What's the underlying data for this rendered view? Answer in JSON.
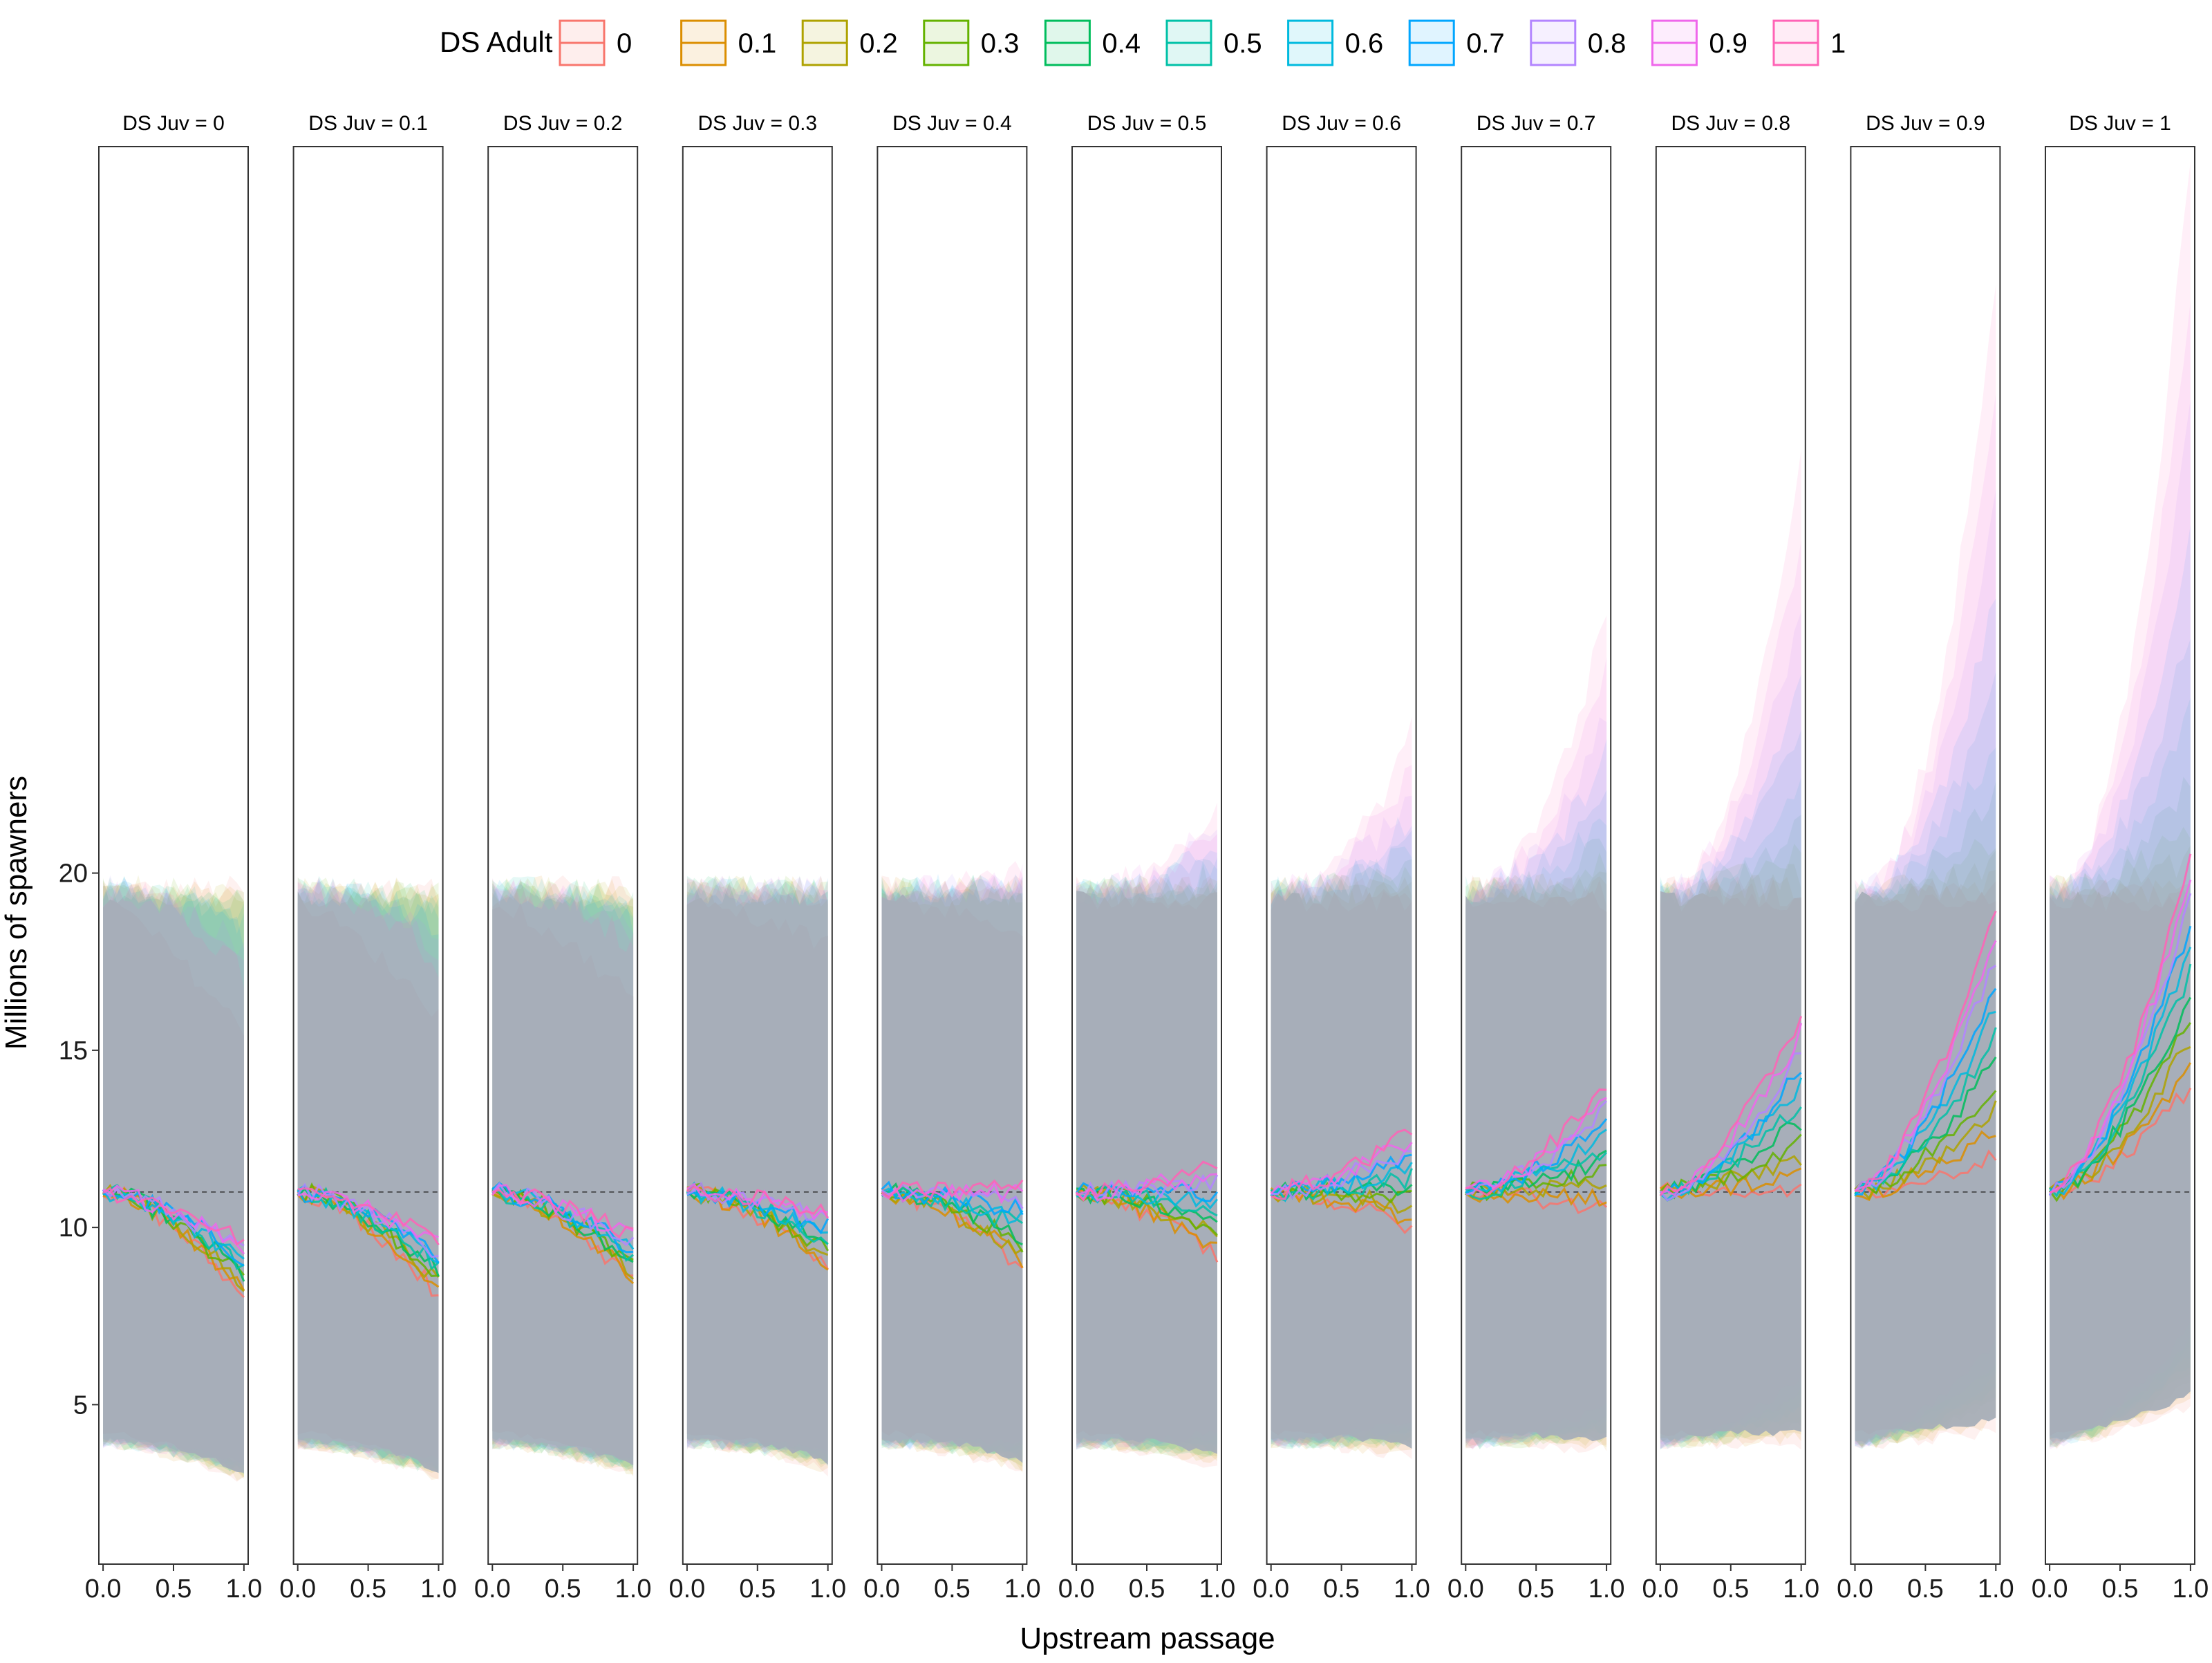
{
  "chart_data": {
    "type": "line",
    "xlabel": "Upstream passage",
    "ylabel": "Millions of spawners",
    "x": [
      0,
      0.05,
      0.1,
      0.15,
      0.2,
      0.25,
      0.3,
      0.35,
      0.4,
      0.45,
      0.5,
      0.55,
      0.6,
      0.65,
      0.7,
      0.75,
      0.8,
      0.85,
      0.9,
      0.95,
      1
    ],
    "xticks": [
      "0.0",
      "0.5",
      "1.0"
    ],
    "yticks": [
      5,
      10,
      15,
      20
    ],
    "ylim": [
      0.5,
      40.5
    ],
    "xlim": [
      -0.03,
      1.03
    ],
    "reference_line": 11,
    "legend": {
      "title": "DS Adult",
      "position": "top",
      "levels": [
        "0",
        "0.1",
        "0.2",
        "0.3",
        "0.4",
        "0.5",
        "0.6",
        "0.7",
        "0.8",
        "0.9",
        "1"
      ],
      "colors": [
        "#F8766D",
        "#DB8E00",
        "#AEA200",
        "#64B200",
        "#00BD5C",
        "#00C1A7",
        "#00BADE",
        "#00A6FF",
        "#B385FF",
        "#EF67EB",
        "#FF63B6"
      ]
    },
    "facets": [
      {
        "strip": "DS Juv = 0",
        "end_low": 8.0,
        "end_high": 9.6,
        "upper_end": 17.0
      },
      {
        "strip": "DS Juv = 0.1",
        "end_low": 8.1,
        "end_high": 9.6,
        "upper_end": 17.5
      },
      {
        "strip": "DS Juv = 0.2",
        "end_low": 8.5,
        "end_high": 9.8,
        "upper_end": 18.0
      },
      {
        "strip": "DS Juv = 0.3",
        "end_low": 8.8,
        "end_high": 10.5,
        "upper_end": 19.5
      },
      {
        "strip": "DS Juv = 0.4",
        "end_low": 8.8,
        "end_high": 11.2,
        "upper_end": 20.0
      },
      {
        "strip": "DS Juv = 0.5",
        "end_low": 9.2,
        "end_high": 11.8,
        "upper_end": 22.0
      },
      {
        "strip": "DS Juv = 0.6",
        "end_low": 10.0,
        "end_high": 12.8,
        "upper_end": 24.0
      },
      {
        "strip": "DS Juv = 0.7",
        "end_low": 10.5,
        "end_high": 14.0,
        "upper_end": 27.5
      },
      {
        "strip": "DS Juv = 0.8",
        "end_low": 11.0,
        "end_high": 16.0,
        "upper_end": 32.0
      },
      {
        "strip": "DS Juv = 0.9",
        "end_low": 12.0,
        "end_high": 19.0,
        "upper_end": 37.0
      },
      {
        "strip": "DS Juv = 1",
        "end_low": 14.0,
        "end_high": 20.5,
        "upper_end": 40.5
      }
    ]
  }
}
